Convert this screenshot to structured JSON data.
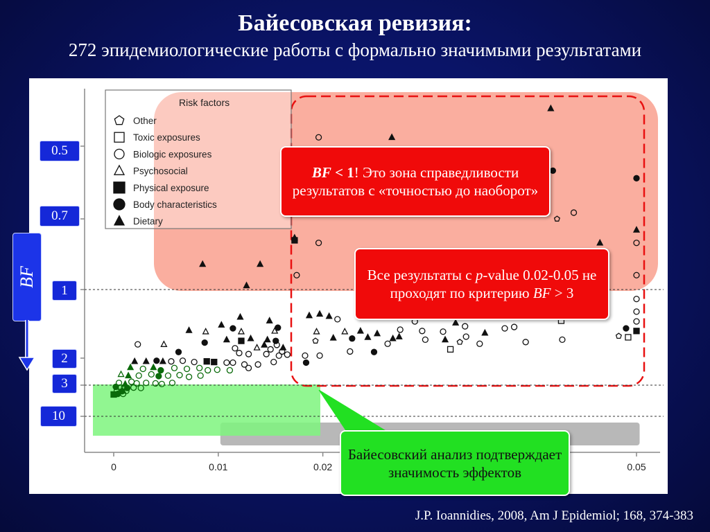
{
  "slide": {
    "title": "Байесовская ревизия:",
    "subtitle": "272 эпидемиологические работы с формально значимыми результатами",
    "footer": "J.P. Ioannidies, 2008, Am J Epidemiol; 168, 374-383",
    "bf_axis_label": "BF",
    "bf_ticks": [
      "0.5",
      "0.7",
      "1",
      "2",
      "3",
      "10"
    ],
    "callouts": {
      "red_zone": {
        "bf": "BF",
        "lt": " < 1",
        "rest": "! Это зона справедливости результатов с «точностью до наоборот»"
      },
      "pvalue": {
        "pre": "Все результаты с ",
        "p": "p",
        "mid": "-value 0.02-0.05 не проходят по критерию ",
        "bf": "BF",
        "post": " > 3"
      },
      "bayes": "Байесовский анализ подтверждает значимость эффектов"
    }
  },
  "chart_data": {
    "type": "scatter",
    "title": "",
    "xlabel": "",
    "ylabel": "BF",
    "xlim": [
      -0.0025,
      0.0525
    ],
    "x_ticks": [
      0,
      0.01,
      0.02,
      0.05
    ],
    "x_tick_labels": [
      "0",
      "0.01",
      "0.02",
      "0.05"
    ],
    "y_scale": "log (inverted: smaller BF at top)",
    "y_ticks": [
      0.5,
      0.7,
      1,
      2,
      3,
      10
    ],
    "reference_lines_bf": [
      1,
      3,
      10
    ],
    "grid": false,
    "legend": {
      "title": "Risk factors",
      "placement": "top-left",
      "entries": [
        {
          "name": "Other",
          "marker": "pentagon-open"
        },
        {
          "name": "Toxic exposures",
          "marker": "square-open"
        },
        {
          "name": "Biologic exposures",
          "marker": "circle-open"
        },
        {
          "name": "Psychosocial",
          "marker": "triangle-open"
        },
        {
          "name": "Physical exposure",
          "marker": "square-filled"
        },
        {
          "name": "Body characteristics",
          "marker": "circle-filled"
        },
        {
          "name": "Dietary",
          "marker": "triangle-filled"
        }
      ]
    },
    "shaded_regions": [
      {
        "label": "red zone",
        "color": "#f9a08e",
        "x": [
          0.004,
          0.052
        ],
        "bf": [
          0.45,
          1.0
        ]
      },
      {
        "label": "p 0.02-0.05 dashed",
        "color": "#ff2020",
        "x": [
          0.017,
          0.051
        ],
        "bf": [
          0.42,
          3.0
        ]
      },
      {
        "label": "green zone",
        "color": "#7ef47e",
        "x": [
          -0.002,
          0.0198
        ],
        "bf": [
          3.0,
          15.0
        ]
      },
      {
        "label": "gray band",
        "color": "#b8b8b8",
        "x": [
          0.0102,
          0.0503
        ],
        "bf": [
          11.5,
          20.0
        ]
      }
    ],
    "points": [
      {
        "x": 0.0418,
        "bf": 0.42,
        "m": "tf"
      },
      {
        "x": 0.0196,
        "bf": 0.48,
        "m": "co"
      },
      {
        "x": 0.0266,
        "bf": 0.48,
        "m": "tf"
      },
      {
        "x": 0.042,
        "bf": 0.56,
        "m": "cf"
      },
      {
        "x": 0.05,
        "bf": 0.58,
        "m": "cf"
      },
      {
        "x": 0.044,
        "bf": 0.68,
        "m": "co"
      },
      {
        "x": 0.0424,
        "bf": 0.7,
        "m": "po"
      },
      {
        "x": 0.05,
        "bf": 0.74,
        "m": "tf"
      },
      {
        "x": 0.0173,
        "bf": 0.77,
        "m": "tf"
      },
      {
        "x": 0.0465,
        "bf": 0.79,
        "m": "tf"
      },
      {
        "x": 0.05,
        "bf": 0.79,
        "m": "co"
      },
      {
        "x": 0.0173,
        "bf": 0.78,
        "m": "sf"
      },
      {
        "x": 0.0196,
        "bf": 0.79,
        "m": "co"
      },
      {
        "x": 0.0085,
        "bf": 0.88,
        "m": "tf"
      },
      {
        "x": 0.014,
        "bf": 0.88,
        "m": "tf"
      },
      {
        "x": 0.05,
        "bf": 0.93,
        "m": "co"
      },
      {
        "x": 0.0175,
        "bf": 0.93,
        "m": "co"
      },
      {
        "x": 0.0127,
        "bf": 0.98,
        "m": "tf"
      },
      {
        "x": 0.05,
        "bf": 1.1,
        "m": "co"
      },
      {
        "x": 0.05,
        "bf": 1.25,
        "m": "co"
      },
      {
        "x": 0.0187,
        "bf": 1.3,
        "m": "tf"
      },
      {
        "x": 0.0197,
        "bf": 1.28,
        "m": "tf"
      },
      {
        "x": 0.0206,
        "bf": 1.31,
        "m": "tf"
      },
      {
        "x": 0.0214,
        "bf": 1.35,
        "m": "co"
      },
      {
        "x": 0.0121,
        "bf": 1.32,
        "m": "tf"
      },
      {
        "x": 0.0149,
        "bf": 1.37,
        "m": "tf"
      },
      {
        "x": 0.0288,
        "bf": 1.38,
        "m": "co"
      },
      {
        "x": 0.0327,
        "bf": 1.4,
        "m": "tf"
      },
      {
        "x": 0.0336,
        "bf": 1.45,
        "m": "co"
      },
      {
        "x": 0.0428,
        "bf": 1.37,
        "m": "so"
      },
      {
        "x": 0.05,
        "bf": 1.38,
        "m": "co"
      },
      {
        "x": 0.049,
        "bf": 1.48,
        "m": "cf"
      },
      {
        "x": 0.05,
        "bf": 1.52,
        "m": "sf"
      },
      {
        "x": 0.0103,
        "bf": 1.43,
        "m": "tf"
      },
      {
        "x": 0.0114,
        "bf": 1.48,
        "m": "cf"
      },
      {
        "x": 0.0157,
        "bf": 1.47,
        "m": "cf"
      },
      {
        "x": 0.0072,
        "bf": 1.51,
        "m": "tf"
      },
      {
        "x": 0.0088,
        "bf": 1.53,
        "m": "to"
      },
      {
        "x": 0.0122,
        "bf": 1.53,
        "m": "to"
      },
      {
        "x": 0.0154,
        "bf": 1.52,
        "m": "to"
      },
      {
        "x": 0.0194,
        "bf": 1.53,
        "m": "to"
      },
      {
        "x": 0.0221,
        "bf": 1.53,
        "m": "to"
      },
      {
        "x": 0.0236,
        "bf": 1.52,
        "m": "tf"
      },
      {
        "x": 0.0252,
        "bf": 1.56,
        "m": "tf"
      },
      {
        "x": 0.0274,
        "bf": 1.5,
        "m": "co"
      },
      {
        "x": 0.0295,
        "bf": 1.52,
        "m": "co"
      },
      {
        "x": 0.0315,
        "bf": 1.53,
        "m": "co"
      },
      {
        "x": 0.0374,
        "bf": 1.48,
        "m": "co"
      },
      {
        "x": 0.0383,
        "bf": 1.46,
        "m": "co"
      },
      {
        "x": 0.0355,
        "bf": 1.55,
        "m": "tf"
      },
      {
        "x": 0.0483,
        "bf": 1.6,
        "m": "po"
      },
      {
        "x": 0.0492,
        "bf": 1.62,
        "m": "so"
      },
      {
        "x": 0.021,
        "bf": 1.63,
        "m": "tf"
      },
      {
        "x": 0.0228,
        "bf": 1.64,
        "m": "cf"
      },
      {
        "x": 0.0243,
        "bf": 1.62,
        "m": "tf"
      },
      {
        "x": 0.0267,
        "bf": 1.64,
        "m": "tf"
      },
      {
        "x": 0.0273,
        "bf": 1.61,
        "m": "tf"
      },
      {
        "x": 0.0298,
        "bf": 1.66,
        "m": "co"
      },
      {
        "x": 0.0317,
        "bf": 1.66,
        "m": "tf"
      },
      {
        "x": 0.0337,
        "bf": 1.61,
        "m": "co"
      },
      {
        "x": 0.0429,
        "bf": 1.66,
        "m": "co"
      },
      {
        "x": 0.0108,
        "bf": 1.66,
        "m": "tf"
      },
      {
        "x": 0.0122,
        "bf": 1.68,
        "m": "sf"
      },
      {
        "x": 0.0131,
        "bf": 1.64,
        "m": "tf"
      },
      {
        "x": 0.0147,
        "bf": 1.66,
        "m": "tf"
      },
      {
        "x": 0.0155,
        "bf": 1.68,
        "m": "cf"
      },
      {
        "x": 0.0193,
        "bf": 1.68,
        "m": "po"
      },
      {
        "x": 0.0262,
        "bf": 1.73,
        "m": "co"
      },
      {
        "x": 0.0331,
        "bf": 1.7,
        "m": "po"
      },
      {
        "x": 0.035,
        "bf": 1.73,
        "m": "co"
      },
      {
        "x": 0.0394,
        "bf": 1.7,
        "m": "co"
      },
      {
        "x": 0.0087,
        "bf": 1.71,
        "m": "cf"
      },
      {
        "x": 0.0023,
        "bf": 1.74,
        "m": "co"
      },
      {
        "x": 0.0048,
        "bf": 1.74,
        "m": "to"
      },
      {
        "x": 0.0144,
        "bf": 1.75,
        "m": "tf"
      },
      {
        "x": 0.0156,
        "bf": 1.75,
        "m": "co"
      },
      {
        "x": 0.0162,
        "bf": 1.8,
        "m": "tf"
      },
      {
        "x": 0.0116,
        "bf": 1.81,
        "m": "co"
      },
      {
        "x": 0.0137,
        "bf": 1.8,
        "m": "to"
      },
      {
        "x": 0.015,
        "bf": 1.83,
        "m": "co"
      },
      {
        "x": 0.0161,
        "bf": 1.87,
        "m": "co"
      },
      {
        "x": 0.0226,
        "bf": 1.87,
        "m": "co"
      },
      {
        "x": 0.0249,
        "bf": 1.88,
        "m": "cf"
      },
      {
        "x": 0.0322,
        "bf": 1.83,
        "m": "so"
      },
      {
        "x": 0.0062,
        "bf": 1.88,
        "m": "cf"
      },
      {
        "x": 0.012,
        "bf": 1.9,
        "m": "co"
      },
      {
        "x": 0.0129,
        "bf": 1.92,
        "m": "co"
      },
      {
        "x": 0.0146,
        "bf": 1.92,
        "m": "co"
      },
      {
        "x": 0.0158,
        "bf": 1.95,
        "m": "co"
      },
      {
        "x": 0.0166,
        "bf": 1.93,
        "m": "co"
      },
      {
        "x": 0.0183,
        "bf": 1.95,
        "m": "co"
      },
      {
        "x": 0.0197,
        "bf": 1.95,
        "m": "co"
      },
      {
        "x": 0.002,
        "bf": 2.1,
        "m": "tf"
      },
      {
        "x": 0.0031,
        "bf": 2.1,
        "m": "tf"
      },
      {
        "x": 0.0041,
        "bf": 2.08,
        "m": "cf"
      },
      {
        "x": 0.0047,
        "bf": 2.1,
        "m": "tf"
      },
      {
        "x": 0.0055,
        "bf": 2.1,
        "m": "co"
      },
      {
        "x": 0.0066,
        "bf": 2.08,
        "m": "co"
      },
      {
        "x": 0.0077,
        "bf": 2.12,
        "m": "co"
      },
      {
        "x": 0.0089,
        "bf": 2.1,
        "m": "sf"
      },
      {
        "x": 0.0096,
        "bf": 2.12,
        "m": "sf"
      },
      {
        "x": 0.0108,
        "bf": 2.14,
        "m": "co"
      },
      {
        "x": 0.0114,
        "bf": 2.14,
        "m": "co"
      },
      {
        "x": 0.0125,
        "bf": 2.2,
        "m": "co"
      },
      {
        "x": 0.0138,
        "bf": 2.2,
        "m": "co"
      },
      {
        "x": 0.0153,
        "bf": 2.12,
        "m": "co"
      },
      {
        "x": 0.0184,
        "bf": 2.14,
        "m": "cf"
      },
      {
        "x": 0.0016,
        "bf": 2.3,
        "m": "tf"
      },
      {
        "x": 0.0028,
        "bf": 2.35,
        "m": "co"
      },
      {
        "x": 0.0038,
        "bf": 2.3,
        "m": "tf"
      },
      {
        "x": 0.0045,
        "bf": 2.4,
        "m": "cf"
      },
      {
        "x": 0.0058,
        "bf": 2.32,
        "m": "co"
      },
      {
        "x": 0.007,
        "bf": 2.35,
        "m": "co"
      },
      {
        "x": 0.0082,
        "bf": 2.32,
        "m": "co"
      },
      {
        "x": 0.009,
        "bf": 2.4,
        "m": "co"
      },
      {
        "x": 0.0099,
        "bf": 2.38,
        "m": "co"
      },
      {
        "x": 0.0111,
        "bf": 2.4,
        "m": "co"
      },
      {
        "x": 0.0129,
        "bf": 2.32,
        "m": "co"
      },
      {
        "x": 0.0007,
        "bf": 2.55,
        "m": "to"
      },
      {
        "x": 0.0014,
        "bf": 2.6,
        "m": "tf"
      },
      {
        "x": 0.0024,
        "bf": 2.6,
        "m": "co"
      },
      {
        "x": 0.0036,
        "bf": 2.55,
        "m": "co"
      },
      {
        "x": 0.0043,
        "bf": 2.62,
        "m": "cf"
      },
      {
        "x": 0.0052,
        "bf": 2.6,
        "m": "co"
      },
      {
        "x": 0.0063,
        "bf": 2.58,
        "m": "co"
      },
      {
        "x": 0.0072,
        "bf": 2.65,
        "m": "co"
      },
      {
        "x": 0.0083,
        "bf": 2.6,
        "m": "co"
      },
      {
        "x": 0.0005,
        "bf": 2.9,
        "m": "co"
      },
      {
        "x": 0.0011,
        "bf": 2.95,
        "m": "tf"
      },
      {
        "x": 0.0017,
        "bf": 2.85,
        "m": "co"
      },
      {
        "x": 0.0022,
        "bf": 2.92,
        "m": "co"
      },
      {
        "x": 0.0031,
        "bf": 2.9,
        "m": "co"
      },
      {
        "x": 0.004,
        "bf": 2.92,
        "m": "co"
      },
      {
        "x": 0.0046,
        "bf": 2.95,
        "m": "co"
      },
      {
        "x": 0.0056,
        "bf": 2.9,
        "m": "co"
      },
      {
        "x": 0.0002,
        "bf": 3.2,
        "m": "cf"
      },
      {
        "x": 0.0006,
        "bf": 3.3,
        "m": "co"
      },
      {
        "x": 0.001,
        "bf": 3.25,
        "m": "co"
      },
      {
        "x": 0.0013,
        "bf": 3.35,
        "m": "cf"
      },
      {
        "x": 0.0019,
        "bf": 3.3,
        "m": "co"
      },
      {
        "x": 0.0026,
        "bf": 3.35,
        "m": "co"
      },
      {
        "x": 0.0003,
        "bf": 3.7,
        "m": "co"
      },
      {
        "x": 0.0008,
        "bf": 3.8,
        "m": "cf"
      },
      {
        "x": 0.0012,
        "bf": 3.75,
        "m": "co"
      },
      {
        "x": 0.0,
        "bf": 4.3,
        "m": "sf"
      },
      {
        "x": 0.0004,
        "bf": 4.2,
        "m": "cf"
      },
      {
        "x": 0.0009,
        "bf": 4.2,
        "m": "co"
      }
    ]
  }
}
